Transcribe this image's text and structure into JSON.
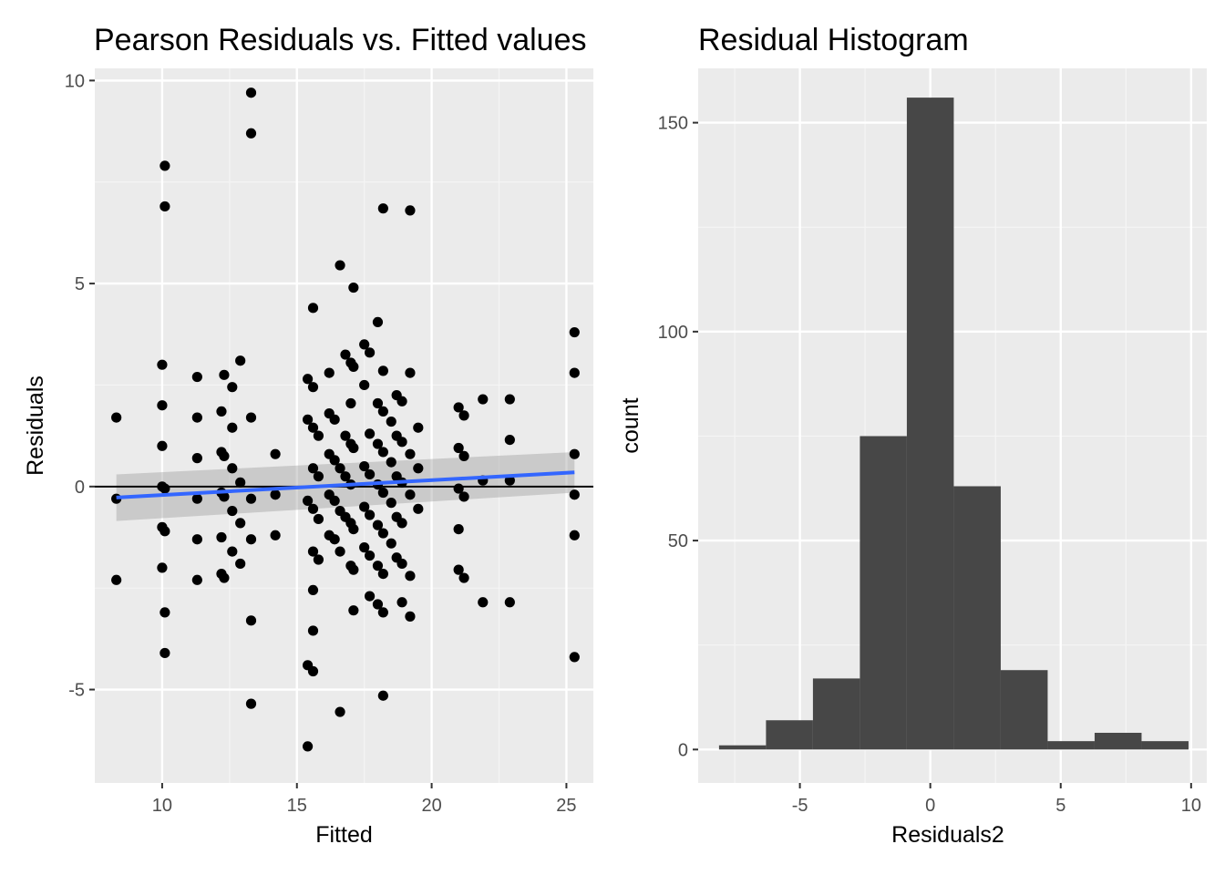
{
  "chart_data": [
    {
      "type": "scatter",
      "title": "Pearson Residuals vs. Fitted values",
      "xlabel": "Fitted",
      "ylabel": "Residuals",
      "xlim": [
        7.5,
        26
      ],
      "ylim": [
        -7.3,
        10.3
      ],
      "xticks": [
        10,
        15,
        20,
        25
      ],
      "yticks": [
        -5,
        0,
        5,
        10
      ],
      "xtick_labels": [
        "10",
        "15",
        "20",
        "25"
      ],
      "ytick_labels": [
        "-5",
        "0",
        "5",
        "10"
      ],
      "grid": true,
      "hline": 0,
      "smooth": {
        "color": "#3366ff",
        "x": [
          8.3,
          25.3
        ],
        "y": [
          -0.27,
          0.35
        ],
        "band_lower": [
          -0.85,
          -0.15
        ],
        "band_upper": [
          0.3,
          0.85
        ]
      },
      "points": [
        [
          8.3,
          1.7
        ],
        [
          8.3,
          -0.3
        ],
        [
          8.3,
          -2.3
        ],
        [
          10.0,
          3.0
        ],
        [
          10.0,
          2.0
        ],
        [
          10.0,
          1.0
        ],
        [
          10.0,
          0.0
        ],
        [
          10.0,
          -1.0
        ],
        [
          10.0,
          -2.0
        ],
        [
          10.1,
          7.9
        ],
        [
          10.1,
          6.9
        ],
        [
          10.1,
          -0.05
        ],
        [
          10.1,
          -1.1
        ],
        [
          10.1,
          -3.1
        ],
        [
          10.1,
          -4.1
        ],
        [
          11.3,
          2.7
        ],
        [
          11.3,
          1.7
        ],
        [
          11.3,
          0.7
        ],
        [
          11.3,
          -0.3
        ],
        [
          11.3,
          -1.3
        ],
        [
          11.3,
          -2.3
        ],
        [
          12.2,
          1.85
        ],
        [
          12.2,
          0.85
        ],
        [
          12.2,
          -0.15
        ],
        [
          12.2,
          -1.25
        ],
        [
          12.2,
          -2.15
        ],
        [
          12.3,
          2.75
        ],
        [
          12.3,
          0.75
        ],
        [
          12.3,
          -0.25
        ],
        [
          12.3,
          -2.25
        ],
        [
          12.6,
          2.45
        ],
        [
          12.6,
          1.45
        ],
        [
          12.6,
          0.45
        ],
        [
          12.6,
          -0.6
        ],
        [
          12.6,
          -1.6
        ],
        [
          12.9,
          3.1
        ],
        [
          12.9,
          0.1
        ],
        [
          12.9,
          -0.9
        ],
        [
          12.9,
          -1.9
        ],
        [
          13.3,
          9.7
        ],
        [
          13.3,
          8.7
        ],
        [
          13.3,
          1.7
        ],
        [
          13.3,
          -0.3
        ],
        [
          13.3,
          -1.3
        ],
        [
          13.3,
          -3.3
        ],
        [
          13.3,
          -5.35
        ],
        [
          14.2,
          0.8
        ],
        [
          14.2,
          -0.2
        ],
        [
          14.2,
          -1.2
        ],
        [
          15.4,
          2.65
        ],
        [
          15.4,
          1.65
        ],
        [
          15.4,
          -0.35
        ],
        [
          15.4,
          -4.4
        ],
        [
          15.4,
          -6.4
        ],
        [
          15.6,
          4.4
        ],
        [
          15.6,
          2.45
        ],
        [
          15.6,
          1.45
        ],
        [
          15.6,
          0.45
        ],
        [
          15.6,
          -0.55
        ],
        [
          15.6,
          -1.6
        ],
        [
          15.6,
          -2.55
        ],
        [
          15.6,
          -3.55
        ],
        [
          15.6,
          -4.55
        ],
        [
          15.8,
          1.25
        ],
        [
          15.8,
          0.25
        ],
        [
          15.8,
          -0.8
        ],
        [
          15.8,
          -1.8
        ],
        [
          16.2,
          2.8
        ],
        [
          16.2,
          1.8
        ],
        [
          16.2,
          0.8
        ],
        [
          16.2,
          -0.2
        ],
        [
          16.2,
          -1.2
        ],
        [
          16.4,
          1.65
        ],
        [
          16.4,
          0.65
        ],
        [
          16.4,
          -0.35
        ],
        [
          16.4,
          -1.3
        ],
        [
          16.6,
          5.45
        ],
        [
          16.6,
          0.45
        ],
        [
          16.6,
          -0.6
        ],
        [
          16.6,
          -1.6
        ],
        [
          16.6,
          -5.55
        ],
        [
          16.8,
          3.25
        ],
        [
          16.8,
          1.25
        ],
        [
          16.8,
          0.25
        ],
        [
          16.8,
          -0.75
        ],
        [
          17.0,
          3.05
        ],
        [
          17.0,
          2.05
        ],
        [
          17.0,
          1.05
        ],
        [
          17.0,
          0.05
        ],
        [
          17.0,
          -0.9
        ],
        [
          17.0,
          -1.95
        ],
        [
          17.1,
          4.9
        ],
        [
          17.1,
          2.95
        ],
        [
          17.1,
          0.95
        ],
        [
          17.1,
          -1.05
        ],
        [
          17.1,
          -2.05
        ],
        [
          17.1,
          -3.05
        ],
        [
          17.5,
          3.5
        ],
        [
          17.5,
          2.5
        ],
        [
          17.5,
          0.5
        ],
        [
          17.5,
          -0.5
        ],
        [
          17.5,
          -1.5
        ],
        [
          17.7,
          3.3
        ],
        [
          17.7,
          1.3
        ],
        [
          17.7,
          0.3
        ],
        [
          17.7,
          -0.7
        ],
        [
          17.7,
          -1.7
        ],
        [
          17.7,
          -2.7
        ],
        [
          18.0,
          4.05
        ],
        [
          18.0,
          2.05
        ],
        [
          18.0,
          1.05
        ],
        [
          18.0,
          0.05
        ],
        [
          18.0,
          -0.95
        ],
        [
          18.0,
          -1.95
        ],
        [
          18.0,
          -2.9
        ],
        [
          18.2,
          6.85
        ],
        [
          18.2,
          2.85
        ],
        [
          18.2,
          1.85
        ],
        [
          18.2,
          0.85
        ],
        [
          18.2,
          -0.15
        ],
        [
          18.2,
          -1.15
        ],
        [
          18.2,
          -2.15
        ],
        [
          18.2,
          -3.1
        ],
        [
          18.2,
          -5.15
        ],
        [
          18.5,
          1.6
        ],
        [
          18.5,
          0.6
        ],
        [
          18.5,
          -0.4
        ],
        [
          18.5,
          -1.4
        ],
        [
          18.7,
          2.25
        ],
        [
          18.7,
          1.25
        ],
        [
          18.7,
          0.25
        ],
        [
          18.7,
          -0.75
        ],
        [
          18.7,
          -1.75
        ],
        [
          18.9,
          2.1
        ],
        [
          18.9,
          1.1
        ],
        [
          18.9,
          0.1
        ],
        [
          18.9,
          -0.9
        ],
        [
          18.9,
          -1.9
        ],
        [
          18.9,
          -2.85
        ],
        [
          19.2,
          6.8
        ],
        [
          19.2,
          2.8
        ],
        [
          19.2,
          0.8
        ],
        [
          19.2,
          -0.2
        ],
        [
          19.2,
          -2.2
        ],
        [
          19.2,
          -3.2
        ],
        [
          19.5,
          1.45
        ],
        [
          19.5,
          0.45
        ],
        [
          19.5,
          -0.55
        ],
        [
          21.0,
          1.95
        ],
        [
          21.0,
          0.95
        ],
        [
          21.0,
          -0.05
        ],
        [
          21.0,
          -1.05
        ],
        [
          21.0,
          -2.05
        ],
        [
          21.2,
          1.75
        ],
        [
          21.2,
          0.75
        ],
        [
          21.2,
          -0.25
        ],
        [
          21.2,
          -2.25
        ],
        [
          21.9,
          2.15
        ],
        [
          21.9,
          0.15
        ],
        [
          21.9,
          -2.85
        ],
        [
          22.9,
          2.15
        ],
        [
          22.9,
          1.15
        ],
        [
          22.9,
          0.15
        ],
        [
          22.9,
          -2.85
        ],
        [
          25.3,
          3.8
        ],
        [
          25.3,
          2.8
        ],
        [
          25.3,
          0.8
        ],
        [
          25.3,
          -0.2
        ],
        [
          25.3,
          -1.2
        ],
        [
          25.3,
          -4.2
        ]
      ]
    },
    {
      "type": "histogram",
      "title": "Residual Histogram",
      "xlabel": "Residuals2",
      "ylabel": "count",
      "xlim": [
        -8.9,
        10.6
      ],
      "ylim": [
        -8,
        163
      ],
      "xticks": [
        -5,
        0,
        5,
        10
      ],
      "yticks": [
        0,
        50,
        100,
        150
      ],
      "xtick_labels": [
        "-5",
        "0",
        "5",
        "10"
      ],
      "ytick_labels": [
        "0",
        "50",
        "100",
        "150"
      ],
      "grid": true,
      "bar_color": "#474747",
      "bins": [
        {
          "x0": -8.1,
          "x1": -6.3,
          "count": 1
        },
        {
          "x0": -6.3,
          "x1": -4.5,
          "count": 7
        },
        {
          "x0": -4.5,
          "x1": -2.7,
          "count": 17
        },
        {
          "x0": -2.7,
          "x1": -0.9,
          "count": 75
        },
        {
          "x0": -0.9,
          "x1": 0.9,
          "count": 156
        },
        {
          "x0": 0.9,
          "x1": 2.7,
          "count": 63
        },
        {
          "x0": 2.7,
          "x1": 4.5,
          "count": 19
        },
        {
          "x0": 4.5,
          "x1": 6.3,
          "count": 2
        },
        {
          "x0": 6.3,
          "x1": 8.1,
          "count": 4
        },
        {
          "x0": 8.1,
          "x1": 9.9,
          "count": 2
        }
      ]
    }
  ]
}
